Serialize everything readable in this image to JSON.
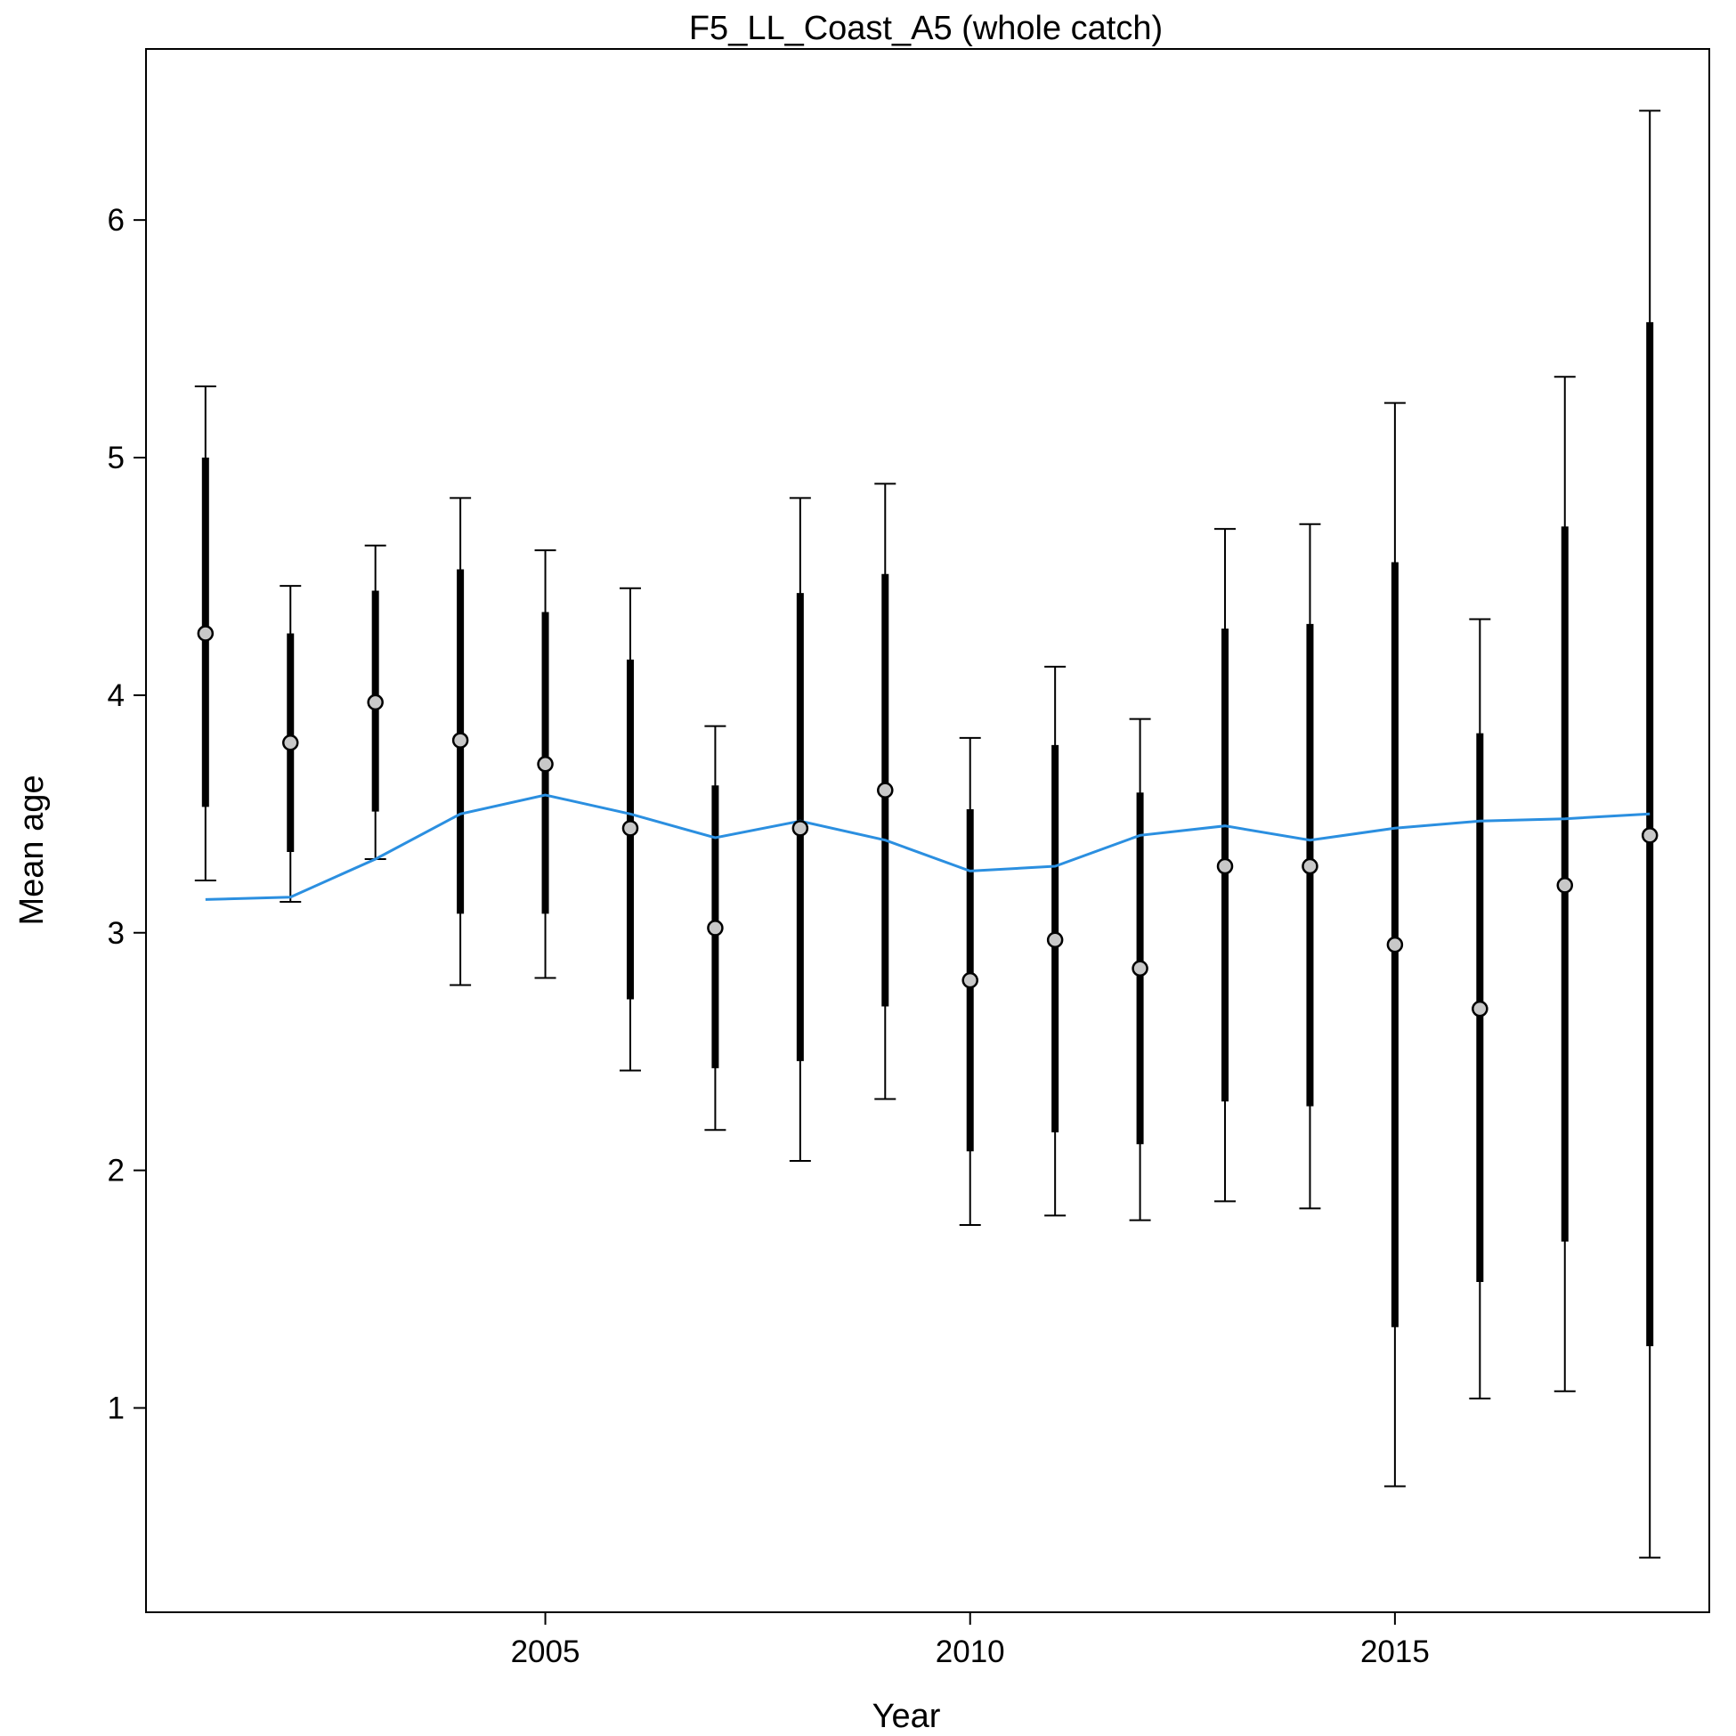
{
  "chart_data": {
    "type": "errorbar",
    "title": "F5_LL_Coast_A5 (whole catch)",
    "xlabel": "Year",
    "ylabel": "Mean age",
    "xlim": [
      2000.3,
      2018.7
    ],
    "ylim": [
      0.14,
      6.72
    ],
    "xticks": [
      2005,
      2010,
      2015
    ],
    "yticks": [
      1,
      2,
      3,
      4,
      5,
      6
    ],
    "grid": false,
    "colors": {
      "expected_line": "#2b8fe0",
      "point_fill": "#c8c8c8",
      "bars": "#000000"
    },
    "years": [
      2001,
      2002,
      2003,
      2004,
      2005,
      2006,
      2007,
      2008,
      2009,
      2010,
      2011,
      2012,
      2013,
      2014,
      2015,
      2016,
      2017,
      2018
    ],
    "observed": [
      4.26,
      3.8,
      3.97,
      3.81,
      3.71,
      3.44,
      3.02,
      3.44,
      3.6,
      2.8,
      2.97,
      2.85,
      3.28,
      3.28,
      2.95,
      2.68,
      3.2,
      3.41
    ],
    "inner_interval": {
      "lower": [
        3.53,
        3.34,
        3.51,
        3.08,
        3.08,
        2.72,
        2.43,
        2.46,
        2.69,
        2.08,
        2.16,
        2.11,
        2.29,
        2.27,
        1.34,
        1.53,
        1.7,
        1.26
      ],
      "upper": [
        5.0,
        4.26,
        4.44,
        4.53,
        4.35,
        4.15,
        3.62,
        4.43,
        4.51,
        3.52,
        3.79,
        3.59,
        4.28,
        4.3,
        4.56,
        3.84,
        4.71,
        5.57
      ]
    },
    "outer_interval": {
      "lower": [
        3.22,
        3.13,
        3.31,
        2.78,
        2.81,
        2.42,
        2.17,
        2.04,
        2.3,
        1.77,
        1.81,
        1.79,
        1.87,
        1.84,
        0.67,
        1.04,
        1.07,
        0.37
      ],
      "upper": [
        5.3,
        4.46,
        4.63,
        4.83,
        4.61,
        4.45,
        3.87,
        4.83,
        4.89,
        3.82,
        4.12,
        3.9,
        4.7,
        4.72,
        5.23,
        4.32,
        5.34,
        6.46
      ]
    },
    "expected": [
      3.14,
      3.15,
      3.31,
      3.5,
      3.58,
      3.5,
      3.4,
      3.47,
      3.39,
      3.26,
      3.28,
      3.41,
      3.45,
      3.39,
      3.44,
      3.47,
      3.48,
      3.5
    ]
  }
}
